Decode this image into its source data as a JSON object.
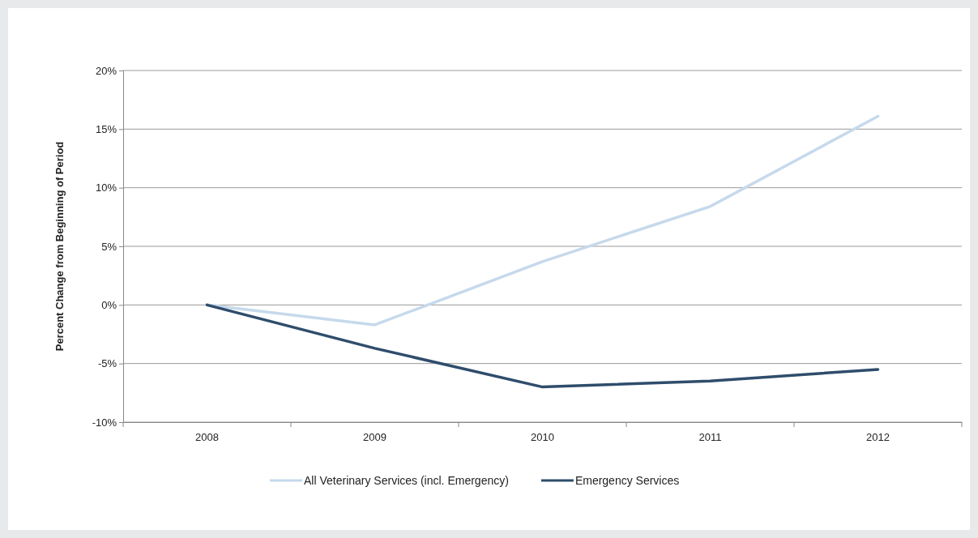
{
  "chart_data": {
    "type": "line",
    "ylabel": "Percent Change from Beginning of Period",
    "categories": [
      "2008",
      "2009",
      "2010",
      "2011",
      "2012"
    ],
    "series": [
      {
        "name": "All Veterinary Services (incl. Emergency)",
        "color": "#c6d9ec",
        "values": [
          0,
          -1.7,
          3.7,
          8.4,
          16.1
        ]
      },
      {
        "name": "Emergency Services",
        "color": "#2f4d6c",
        "values": [
          0,
          -3.7,
          -7.0,
          -6.5,
          -5.5
        ]
      }
    ],
    "ylim": [
      -10,
      20
    ],
    "yticks": [
      {
        "value": -10,
        "label": "-10%"
      },
      {
        "value": -5,
        "label": "-5%"
      },
      {
        "value": 0,
        "label": "0%"
      },
      {
        "value": 5,
        "label": "5%"
      },
      {
        "value": 10,
        "label": "10%"
      },
      {
        "value": 15,
        "label": "15%"
      },
      {
        "value": 20,
        "label": "20%"
      }
    ],
    "grid": "y",
    "legend": "bottom",
    "marker": "none",
    "line_style": "solid"
  }
}
